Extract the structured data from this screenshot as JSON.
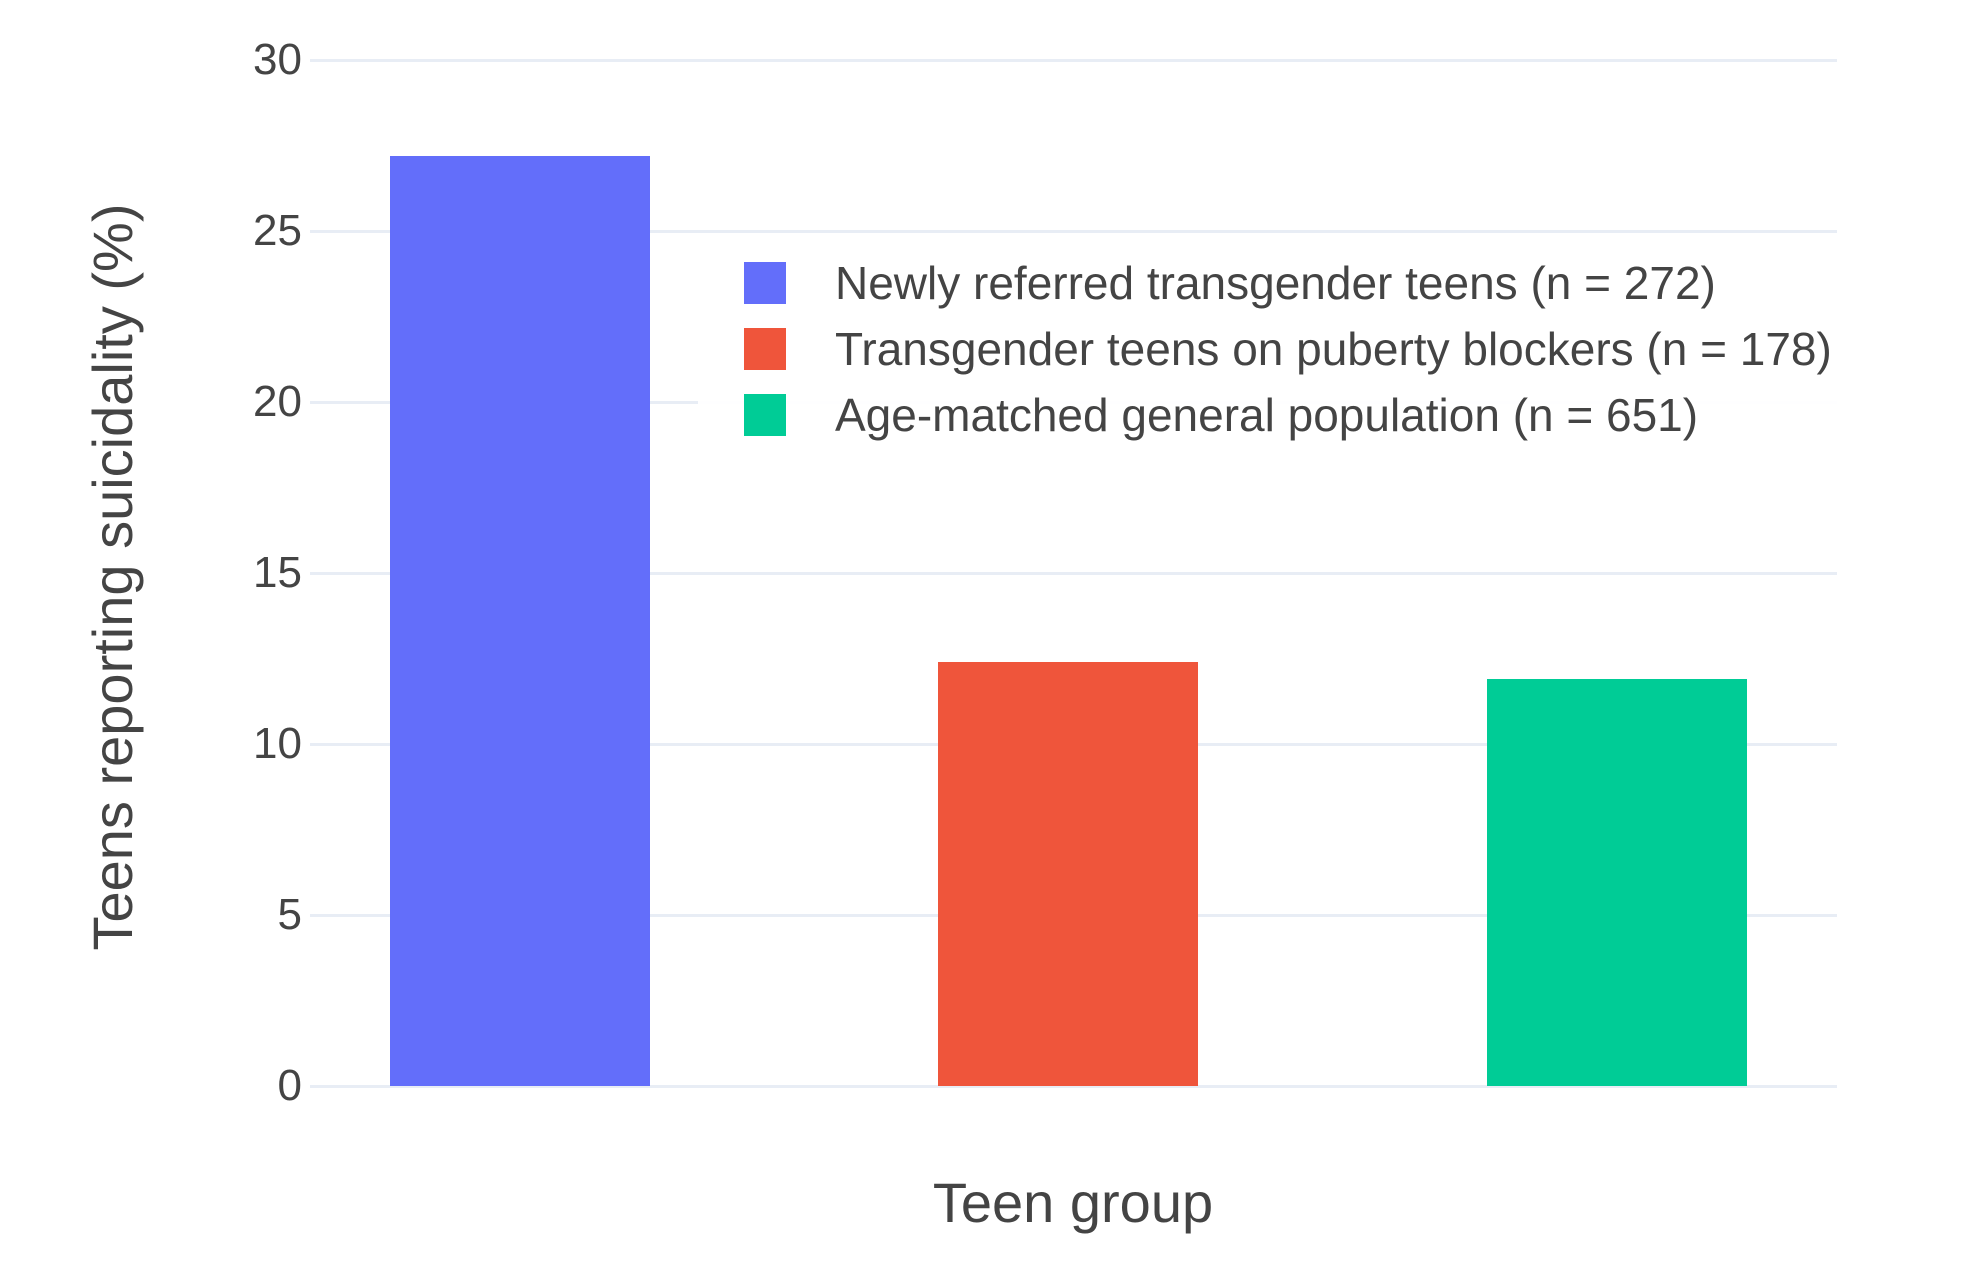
{
  "chart_data": {
    "type": "bar",
    "categories": [
      "Newly referred transgender teens (n = 272)",
      "Transgender teens on puberty blockers (n = 178)",
      "Age-matched general population (n = 651)"
    ],
    "values": [
      27.2,
      12.4,
      11.9
    ],
    "bar_colors": [
      "#636EFA",
      "#EF553B",
      "#00CC96"
    ],
    "title": "",
    "xlabel": "Teen group",
    "ylabel": "Teens reporting suicidality (%)",
    "ylim": [
      0,
      30
    ],
    "ytick_step": 5,
    "ytick_labels": [
      "0",
      "5",
      "10",
      "15",
      "20",
      "25",
      "30"
    ],
    "grid": true,
    "gridline_color": "#E8EDF5",
    "background_color": "#FFFFFF",
    "text_color": "#444444",
    "legend_position": "inside-upper-area",
    "legend": {
      "items": [
        {
          "label": "Newly referred transgender teens (n = 272)",
          "color": "#636EFA"
        },
        {
          "label": "Transgender teens on puberty blockers (n = 178)",
          "color": "#EF553B"
        },
        {
          "label": "Age-matched general population (n = 651)",
          "color": "#00CC96"
        }
      ]
    }
  }
}
